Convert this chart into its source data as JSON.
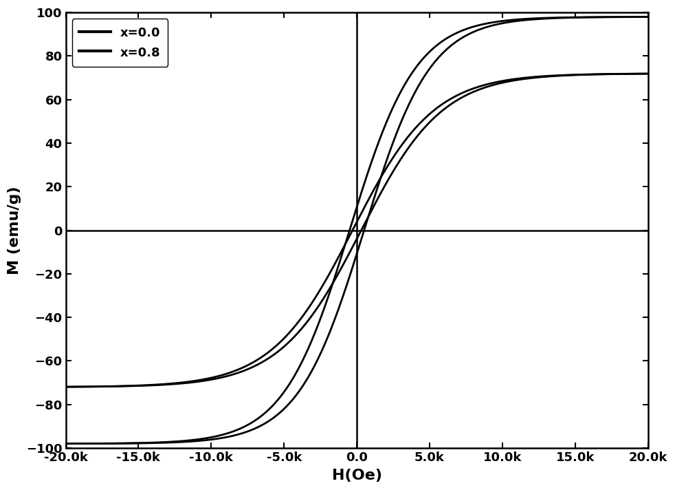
{
  "xlabel": "H(Oe)",
  "ylabel": "M (emu/g)",
  "xlim": [
    -20000,
    20000
  ],
  "ylim": [
    -100,
    100
  ],
  "xticks": [
    -20000,
    -15000,
    -10000,
    -5000,
    0,
    5000,
    10000,
    15000,
    20000
  ],
  "yticks": [
    -100,
    -80,
    -60,
    -40,
    -20,
    0,
    20,
    40,
    60,
    80,
    100
  ],
  "legend": [
    "x=0.0",
    "x=0.8"
  ],
  "line_color": "#000000",
  "background_color": "#ffffff",
  "line_width": 2.0,
  "curve1_Ms": 98,
  "curve1_Hc": 500,
  "curve1_k": 0.00022,
  "curve2_Ms": 72,
  "curve2_Hc": 300,
  "curve2_k": 0.00018,
  "figsize": [
    9.82,
    7.12
  ],
  "dpi": 100
}
